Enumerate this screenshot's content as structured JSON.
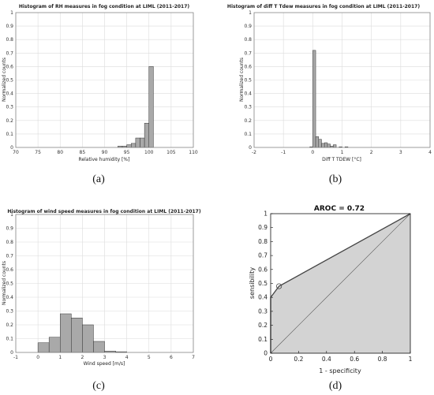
{
  "chart_data": [
    {
      "type": "bar",
      "title": "Histogram of RH measures in fog condition at LIML (2011-2017)",
      "xlabel": "Relative humidity [%]",
      "ylabel": "Normalized counts",
      "xlim": [
        70,
        110
      ],
      "ylim": [
        0,
        1
      ],
      "xticks": [
        "70",
        "75",
        "80",
        "85",
        "90",
        "95",
        "100",
        "105",
        "110"
      ],
      "yticks": [
        "0",
        "0.1",
        "0.2",
        "0.3",
        "0.4",
        "0.5",
        "0.6",
        "0.7",
        "0.8",
        "0.9",
        "1"
      ],
      "bin_width": 1,
      "bin_starts": [
        93,
        94,
        95,
        96,
        97,
        98,
        99,
        100
      ],
      "values": [
        0.01,
        0.01,
        0.02,
        0.03,
        0.07,
        0.07,
        0.18,
        0.6
      ],
      "grid": true,
      "caption": "(a)"
    },
    {
      "type": "bar",
      "title": "Histogram of diff T Tdew measures in fog condition at LIML (2011-2017)",
      "xlabel": "Diff T TDEW [°C]",
      "ylabel": "Normalized counts",
      "xlim": [
        -2,
        4
      ],
      "ylim": [
        0,
        1
      ],
      "xticks": [
        "-2",
        "-1",
        "0",
        "1",
        "2",
        "3",
        "4"
      ],
      "yticks": [
        "0",
        "0.1",
        "0.2",
        "0.3",
        "0.4",
        "0.5",
        "0.6",
        "0.7",
        "0.8",
        "0.9",
        "1"
      ],
      "bin_width": 0.1,
      "bin_starts": [
        -0.1,
        0.0,
        0.1,
        0.2,
        0.3,
        0.4,
        0.5,
        0.6,
        0.7,
        0.9,
        1.1
      ],
      "values": [
        0.005,
        0.72,
        0.08,
        0.06,
        0.03,
        0.035,
        0.025,
        0.01,
        0.02,
        0.005,
        0.005
      ],
      "grid": true,
      "caption": "(b)"
    },
    {
      "type": "bar",
      "title": "Histogram of wind speed measures in fog condition at LIML (2011-2017)",
      "xlabel": "Wind speed [m/s]",
      "ylabel": "Normalized counts",
      "xlim": [
        -1,
        7
      ],
      "ylim": [
        0,
        1
      ],
      "xticks": [
        "-1",
        "0",
        "1",
        "2",
        "3",
        "4",
        "5",
        "6",
        "7"
      ],
      "yticks": [
        "0",
        "0.1",
        "0.2",
        "0.3",
        "0.4",
        "0.5",
        "0.6",
        "0.7",
        "0.8",
        "0.9",
        "1"
      ],
      "bin_width": 0.5,
      "bin_starts": [
        0,
        0.5,
        1.0,
        1.5,
        2.0,
        2.5,
        3.0,
        3.5
      ],
      "values": [
        0.07,
        0.11,
        0.28,
        0.25,
        0.2,
        0.08,
        0.01,
        0.005
      ],
      "grid": true,
      "caption": "(c)"
    },
    {
      "type": "area",
      "title": "AROC = 0.72",
      "xlabel": "1 - specificity",
      "ylabel": "sensibility",
      "xlim": [
        0,
        1
      ],
      "ylim": [
        0,
        1
      ],
      "xticks": [
        "0",
        "0.2",
        "0.4",
        "0.6",
        "0.8",
        "1"
      ],
      "yticks": [
        "0",
        "0.1",
        "0.2",
        "0.3",
        "0.4",
        "0.5",
        "0.6",
        "0.7",
        "0.8",
        "0.9",
        "1"
      ],
      "roc_x": [
        0,
        0,
        0.06,
        1
      ],
      "roc_y": [
        0,
        0.4,
        0.48,
        1
      ],
      "operating_point": [
        0.06,
        0.48
      ],
      "diagonal": true,
      "grid": false,
      "caption": "(d)"
    }
  ]
}
